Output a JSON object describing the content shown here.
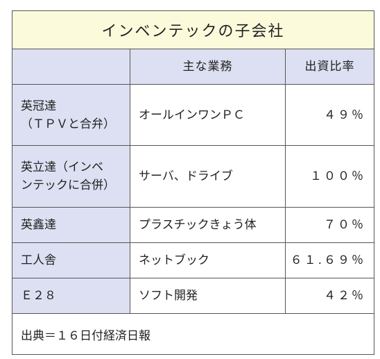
{
  "title": "インベンテックの子会社",
  "headers": [
    "",
    "主な業務",
    "出資比率"
  ],
  "rows": [
    {
      "company": "英冠達\n（ＴＰＶと合弁）",
      "business": "オールインワンＰＣ",
      "ratio": "４９％"
    },
    {
      "company": "英立達（インベ\nンテックに合併）",
      "business": "サーバ、ドライブ",
      "ratio": "１００％"
    },
    {
      "company": "英鑫達",
      "business": "プラスチックきょう体",
      "ratio": "７０％"
    },
    {
      "company": "工人舎",
      "business": "ネットブック",
      "ratio": "６１.６９％"
    },
    {
      "company": "Ｅ２８",
      "business": "ソフト開発",
      "ratio": "４２％"
    }
  ],
  "source": "出典＝１６日付経済日報",
  "colors": {
    "title_bg": "#fbfbdc",
    "header_bg": "#dde0f2",
    "border": "#555555"
  }
}
